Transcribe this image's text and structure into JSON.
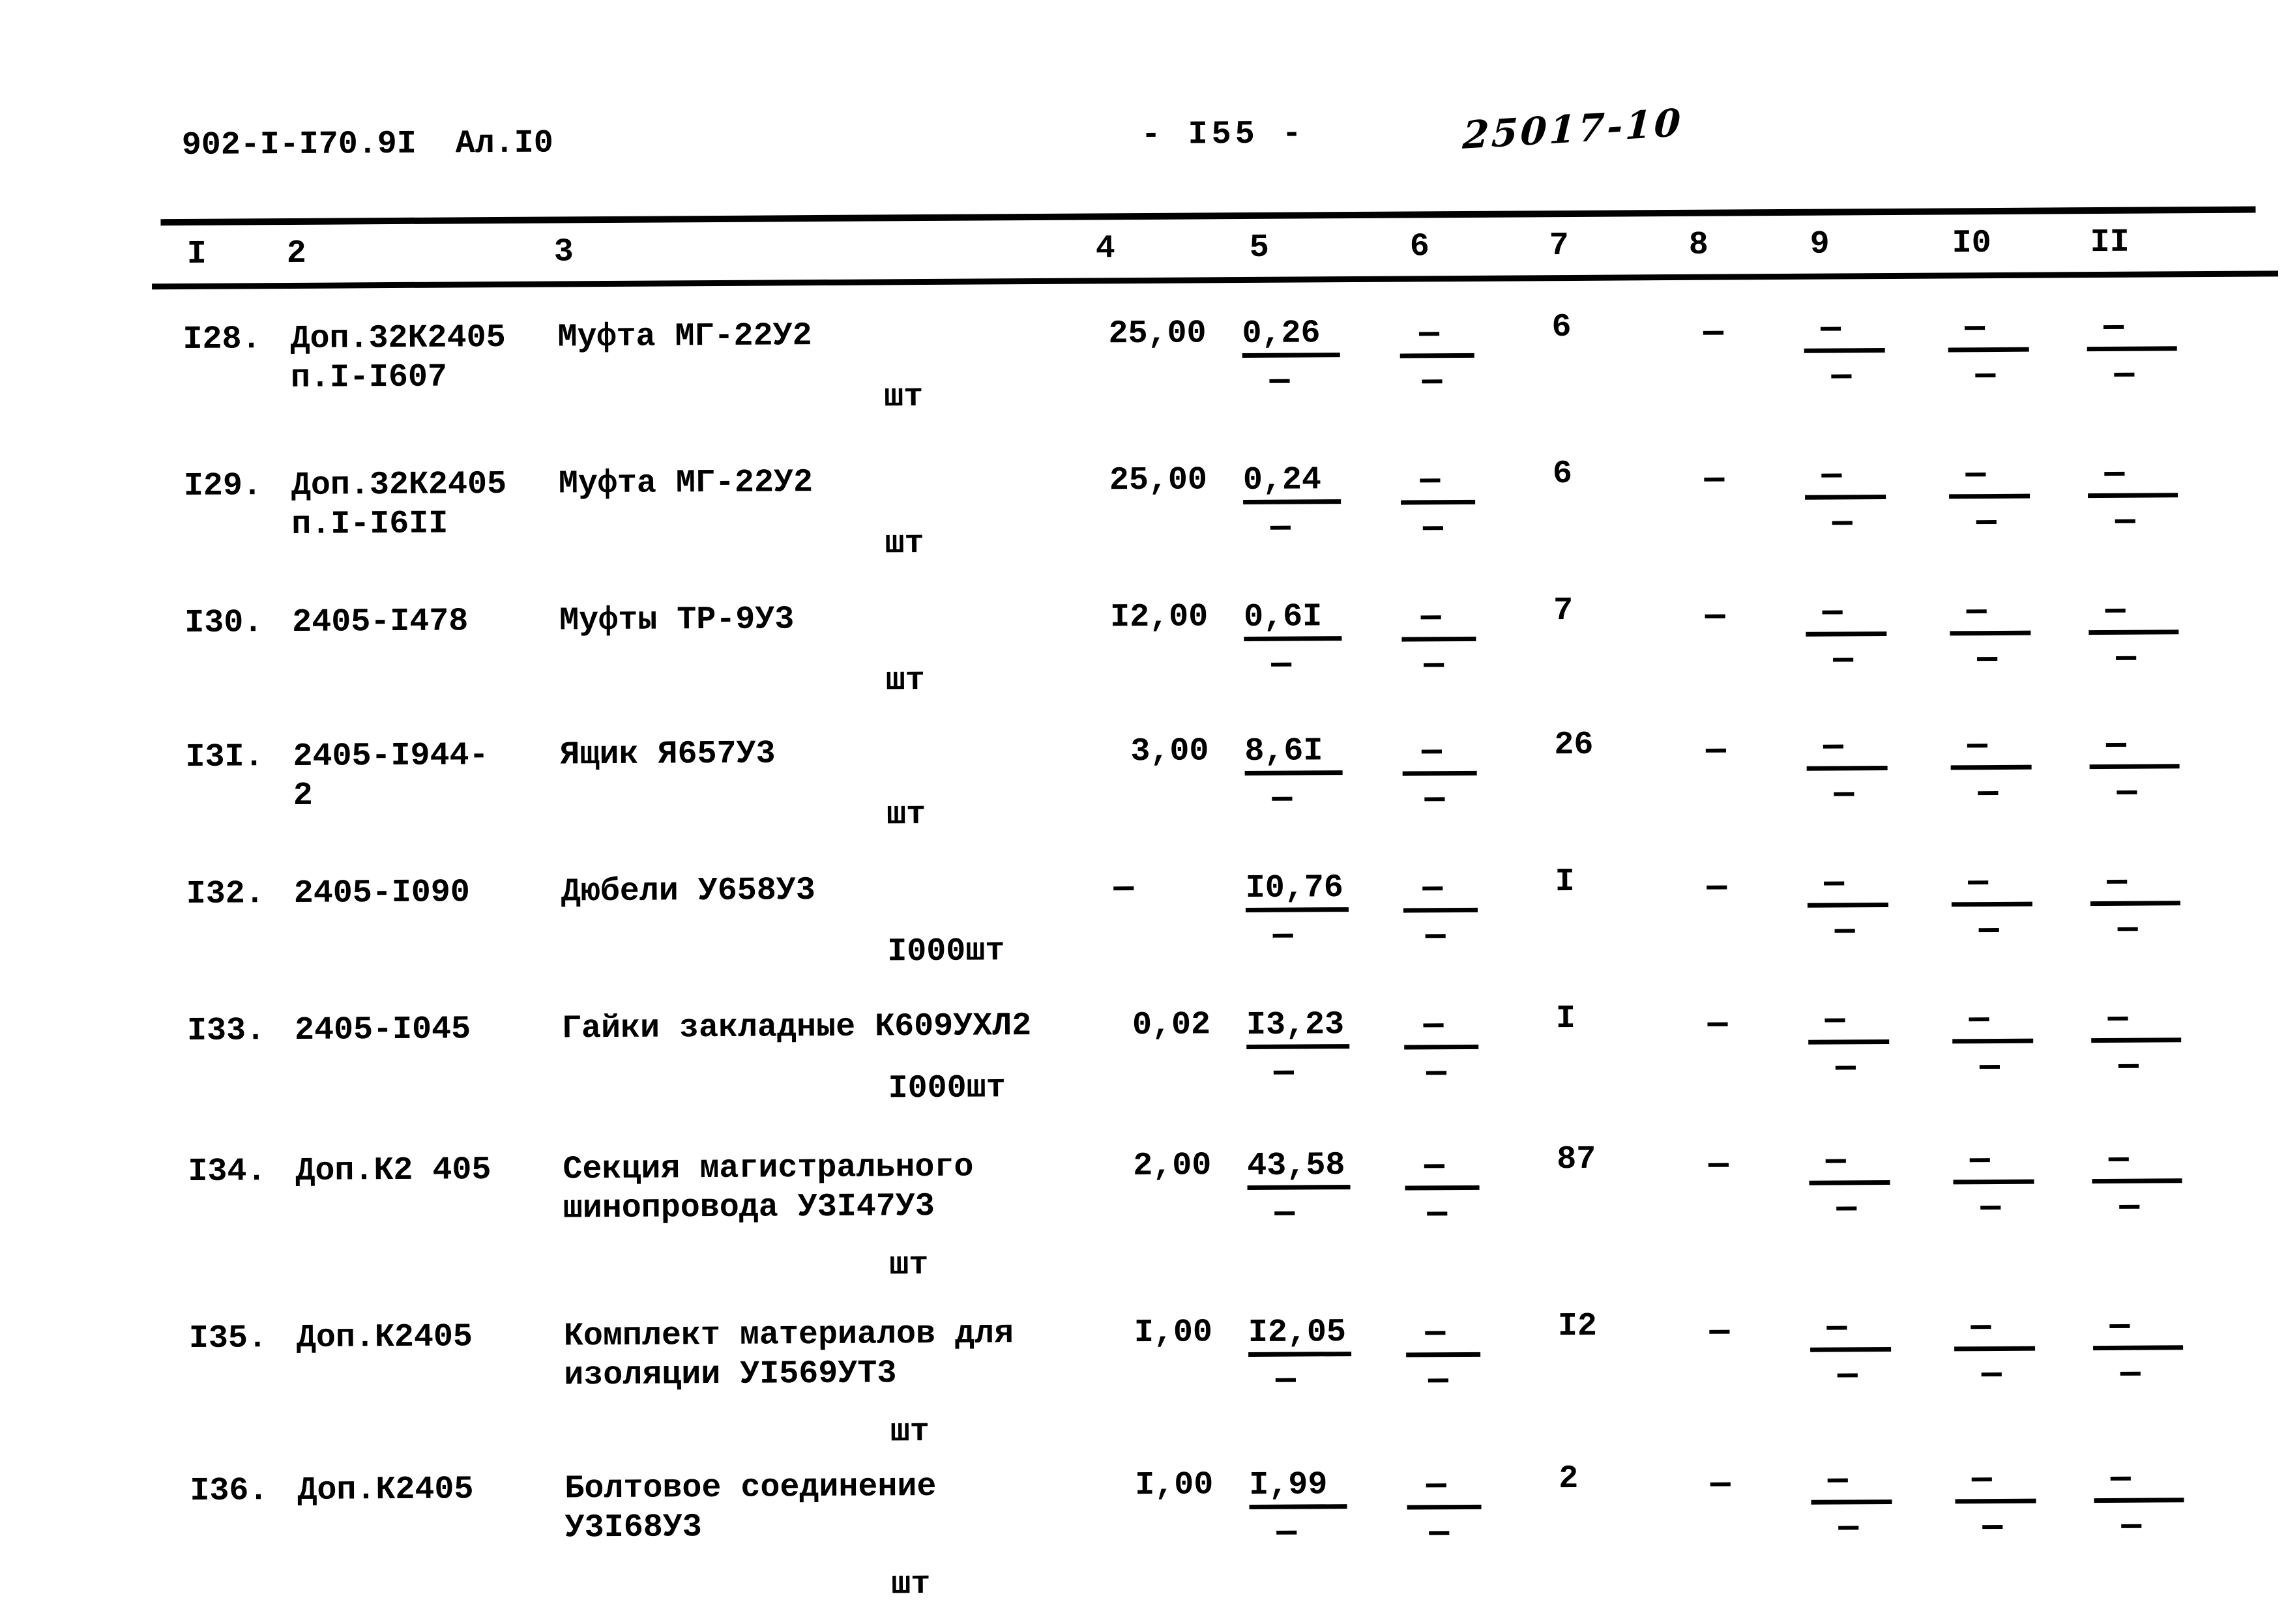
{
  "page": {
    "doc_number": "902-I-I70.9I  Ал.I0",
    "page_number": "- I55 -",
    "handwritten_mark": "25017-10"
  },
  "table": {
    "column_headers": [
      "I",
      "2",
      "3",
      "4",
      "5",
      "6",
      "7",
      "8",
      "9",
      "I0",
      "II"
    ],
    "rows": [
      {
        "num": "I28.",
        "code1": "Доп.32К2405",
        "code2": "п.I-I607",
        "name1": "Муфта МГ-22У2",
        "name2": "",
        "unit": "шт",
        "qty": "25,00",
        "price": "0,26",
        "price_sub": "-",
        "c6_top": "-",
        "c6_sub": "-",
        "c7": "6",
        "c8": "-",
        "c9_top": "-",
        "c9_sub": "-",
        "c10_top": "-",
        "c10_sub": "-",
        "c11_top": "-",
        "c11_sub": "-"
      },
      {
        "num": "I29.",
        "code1": "Доп.32К2405",
        "code2": "п.I-I6II",
        "name1": "Муфта МГ-22У2",
        "name2": "",
        "unit": "шт",
        "qty": "25,00",
        "price": "0,24",
        "price_sub": "-",
        "c6_top": "-",
        "c6_sub": "-",
        "c7": "6",
        "c8": "-",
        "c9_top": "-",
        "c9_sub": "-",
        "c10_top": "-",
        "c10_sub": "-",
        "c11_top": "-",
        "c11_sub": "-"
      },
      {
        "num": "I30.",
        "code1": "2405-I478",
        "code2": "",
        "name1": "Муфты ТР-9У3",
        "name2": "",
        "unit": "шт",
        "qty": "I2,00",
        "price": "0,6I",
        "price_sub": "-",
        "c6_top": "-",
        "c6_sub": "-",
        "c7": "7",
        "c8": "-",
        "c9_top": "-",
        "c9_sub": "-",
        "c10_top": "-",
        "c10_sub": "-",
        "c11_top": "-",
        "c11_sub": "-"
      },
      {
        "num": "I3I.",
        "code1": "2405-I944-",
        "code2": "2",
        "name1": "Ящик Я657У3",
        "name2": "",
        "unit": "шт",
        "qty": "3,00",
        "price": "8,6I",
        "price_sub": "-",
        "c6_top": "-",
        "c6_sub": "-",
        "c7": "26",
        "c8": "-",
        "c9_top": "-",
        "c9_sub": "-",
        "c10_top": "-",
        "c10_sub": "-",
        "c11_top": "-",
        "c11_sub": "-"
      },
      {
        "num": "I32.",
        "code1": "2405-I090",
        "code2": "",
        "name1": "Дюбели У658У3",
        "name2": "",
        "unit": "I000шт",
        "qty": "-",
        "price": "I0,76",
        "price_sub": "-",
        "c6_top": "-",
        "c6_sub": "-",
        "c7": "I",
        "c8": "-",
        "c9_top": "-",
        "c9_sub": "-",
        "c10_top": "-",
        "c10_sub": "-",
        "c11_top": "-",
        "c11_sub": "-"
      },
      {
        "num": "I33.",
        "code1": "2405-I045",
        "code2": "",
        "name1": "Гайки закладные К609УХЛ2",
        "name2": "",
        "unit": "I000шт",
        "qty": "0,02",
        "price": "I3,23",
        "price_sub": "-",
        "c6_top": "-",
        "c6_sub": "-",
        "c7": "I",
        "c8": "-",
        "c9_top": "-",
        "c9_sub": "-",
        "c10_top": "-",
        "c10_sub": "-",
        "c11_top": "-",
        "c11_sub": "-"
      },
      {
        "num": "I34.",
        "code1": "Доп.К2 405",
        "code2": "",
        "name1": "Секция магистрального",
        "name2": "шинопровода У3I47У3",
        "unit": "шт",
        "qty": "2,00",
        "price": "43,58",
        "price_sub": "-",
        "c6_top": "-",
        "c6_sub": "-",
        "c7": "87",
        "c8": "-",
        "c9_top": "-",
        "c9_sub": "-",
        "c10_top": "-",
        "c10_sub": "-",
        "c11_top": "-",
        "c11_sub": "-"
      },
      {
        "num": "I35.",
        "code1": "Доп.К2405",
        "code2": "",
        "name1": "Комплект материалов для",
        "name2": "изоляции УI569УТ3",
        "unit": "шт",
        "qty": "I,00",
        "price": "I2,05",
        "price_sub": "-",
        "c6_top": "-",
        "c6_sub": "-",
        "c7": "I2",
        "c8": "-",
        "c9_top": "-",
        "c9_sub": "-",
        "c10_top": "-",
        "c10_sub": "-",
        "c11_top": "-",
        "c11_sub": "-"
      },
      {
        "num": "I36.",
        "code1": "Доп.К2405",
        "code2": "",
        "name1": "Болтовое соединение",
        "name2": "У3I68У3",
        "unit": "шт",
        "qty": "I,00",
        "price": "I,99",
        "price_sub": "-",
        "c6_top": "-",
        "c6_sub": "-",
        "c7": "2",
        "c8": "-",
        "c9_top": "-",
        "c9_sub": "-",
        "c10_top": "-",
        "c10_sub": "-",
        "c11_top": "-",
        "c11_sub": "-"
      }
    ]
  }
}
